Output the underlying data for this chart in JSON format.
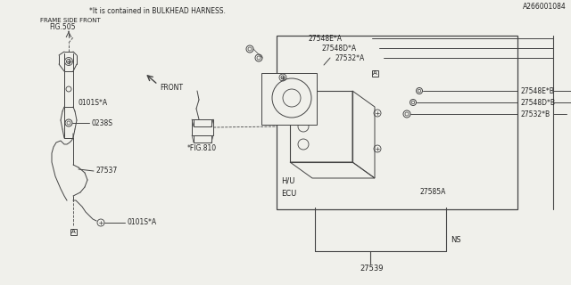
{
  "bg_color": "#f0f0eb",
  "line_color": "#444444",
  "text_color": "#222222",
  "footnote": "*It is contained in BULKHEAD HARNESS.",
  "part_id": "A266001084",
  "labels": {
    "fig505": "FIG.505",
    "frame_side_front": "FRAME SIDE FRONT",
    "fig810": "*FIG.810",
    "front": "FRONT",
    "ecu": "ECU",
    "hu": "H/U",
    "27539": "27539",
    "ns": "NS",
    "27585A": "27585A",
    "27537": "27537",
    "0238S": "0238S",
    "0101SA_top": "0101S*A",
    "0101SA_mid": "0101S*A",
    "27532B": "27532*B",
    "27548DB": "27548D*B",
    "27548EB": "27548E*B",
    "27532A": "27532*A",
    "27548DA": "27548D*A",
    "27548EA": "27548E*A",
    "A_label": "A"
  }
}
